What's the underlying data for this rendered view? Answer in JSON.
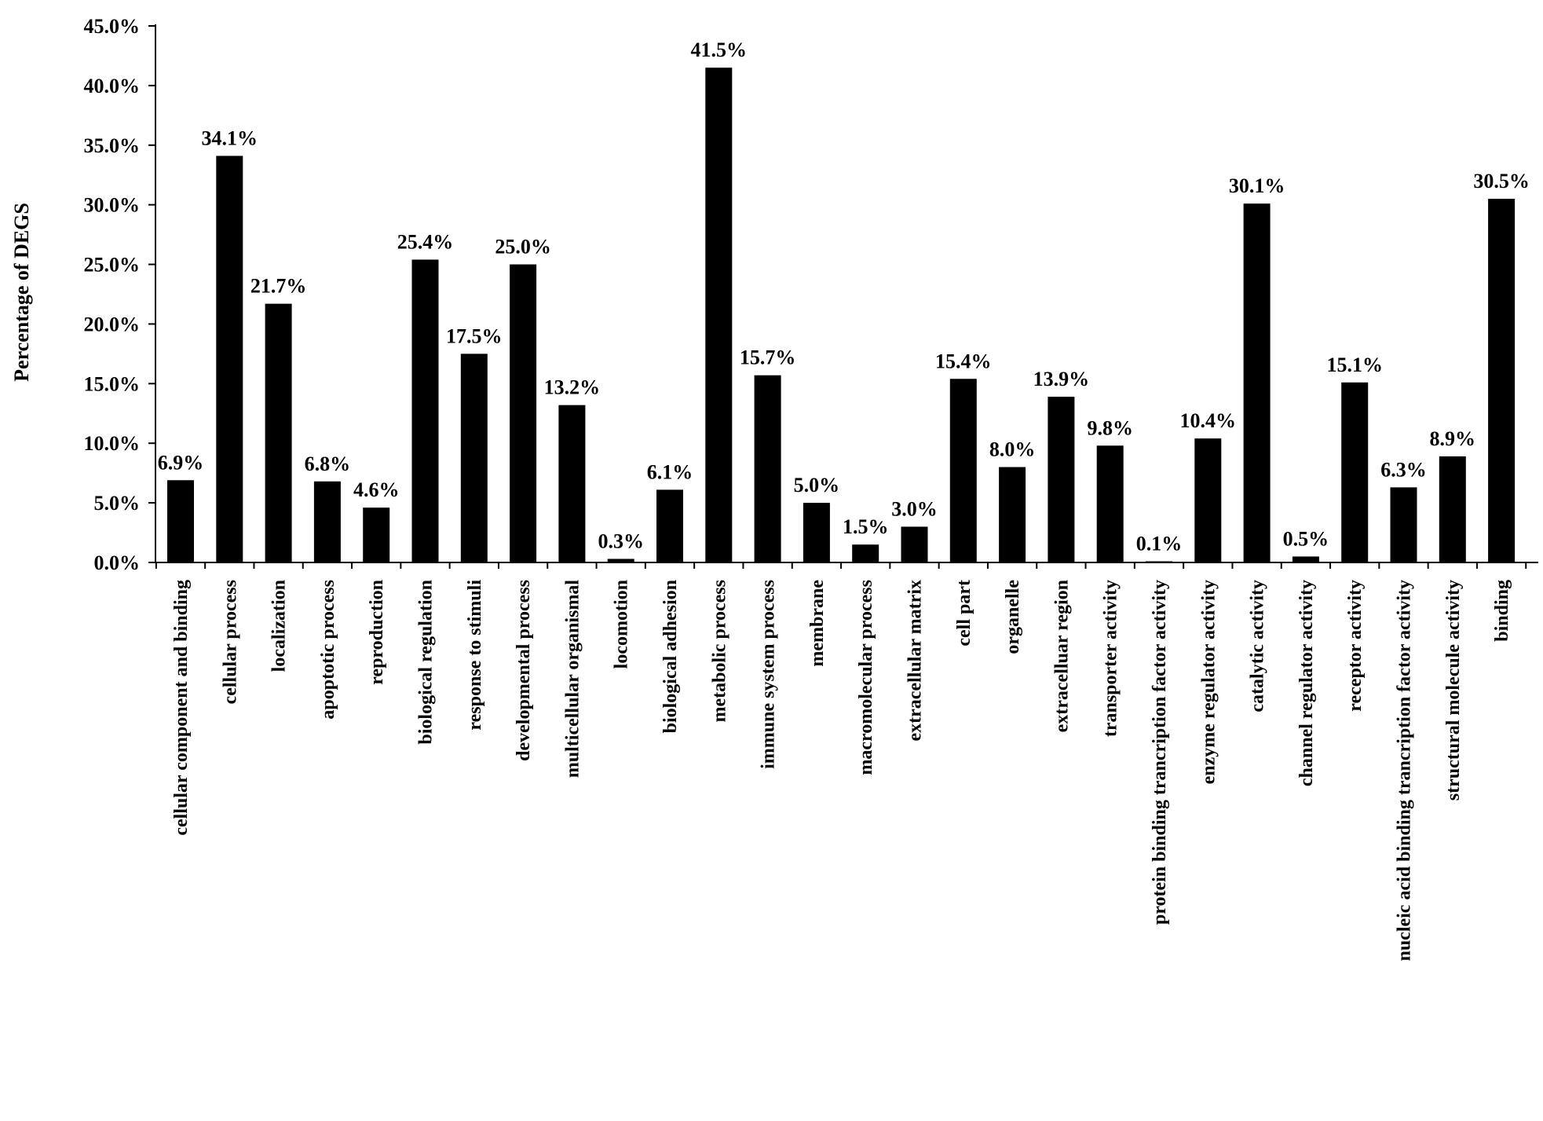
{
  "chart_data": {
    "type": "bar",
    "title": "",
    "xlabel": "",
    "ylabel": "Percentage of DEGS",
    "ylim": [
      0,
      45
    ],
    "yticks": [
      "0.0%",
      "5.0%",
      "10.0%",
      "15.0%",
      "20.0%",
      "25.0%",
      "30.0%",
      "35.0%",
      "40.0%",
      "45.0%"
    ],
    "grid": false,
    "legend": "none",
    "bar_color": "#000000",
    "categories": [
      "cellular component and binding",
      "cellular process",
      "localization",
      "apoptotic process",
      "reproduction",
      "biological regulation",
      "response to stimuli",
      "developmental process",
      "multicellular organismal",
      "locomotion",
      "biological adhesion",
      "metabolic process",
      "immune system process",
      "membrane",
      "macromolecular process",
      "extracellular matrix",
      "cell part",
      "organelle",
      "extracelluar region",
      "transporter activity",
      "protein binding trancription factor activity",
      "enzyme regulator activity",
      "catalytic activity",
      "channel regulator activity",
      "receptor activity",
      "nucleic acid binding trancription factor activity",
      "structural molecule activity",
      "binding"
    ],
    "values": [
      6.9,
      34.1,
      21.7,
      6.8,
      4.6,
      25.4,
      17.5,
      25.0,
      13.2,
      0.3,
      6.1,
      41.5,
      15.7,
      5.0,
      1.5,
      3.0,
      15.4,
      8.0,
      13.9,
      9.8,
      0.1,
      10.4,
      30.1,
      0.5,
      15.1,
      6.3,
      8.9,
      30.5
    ],
    "data_labels": [
      "6.9%",
      "34.1%",
      "21.7%",
      "6.8%",
      "4.6%",
      "25.4%",
      "17.5%",
      "25.0%",
      "13.2%",
      "0.3%",
      "6.1%",
      "41.5%",
      "15.7%",
      "5.0%",
      "1.5%",
      "3.0%",
      "15.4%",
      "8.0%",
      "13.9%",
      "9.8%",
      "0.1%",
      "10.4%",
      "30.1%",
      "0.5%",
      "15.1%",
      "6.3%",
      "8.9%",
      "30.5%"
    ]
  }
}
